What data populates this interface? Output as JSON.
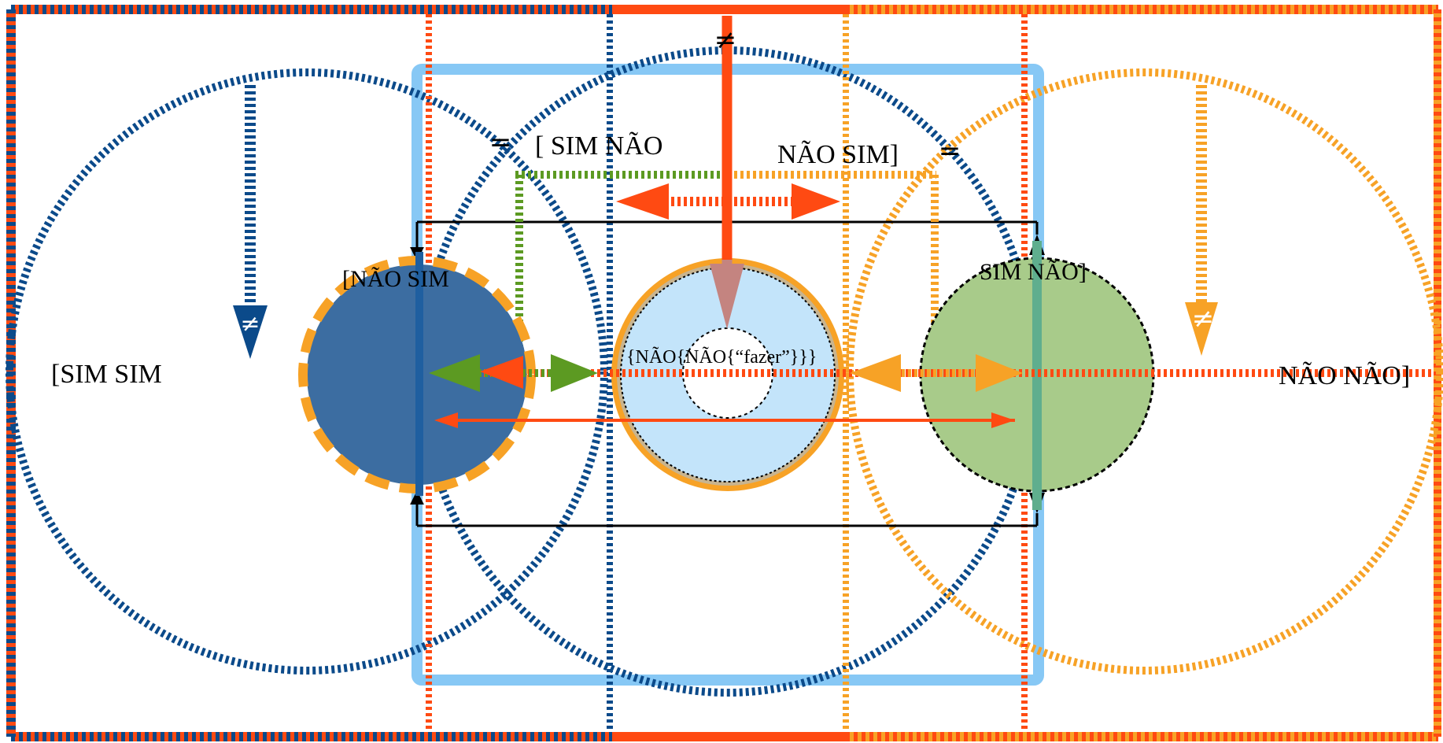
{
  "labels": {
    "left_outer": "[SIM SIM",
    "left_inner": "[NÃO SIM",
    "top_left": "[ SIM NÃO",
    "top_right": "NÃO  SIM]",
    "right_inner": "SIM NÃO]",
    "right_outer": "NÃO NÃO]",
    "center": "{NÃO{NÃO{“fazer”}}}"
  },
  "symbols": {
    "not_equal": "≠",
    "equal": "="
  },
  "colors": {
    "navy": "#0b4a8a",
    "sky": "#87c8f5",
    "red": "#ff4a12",
    "orange": "#f7a226",
    "green": "#5c9a22",
    "fill_blue": "#3c6da1",
    "fill_light_blue": "#c3e4fa",
    "fill_green": "#a8cb8a",
    "tan": "#c8b48f"
  }
}
